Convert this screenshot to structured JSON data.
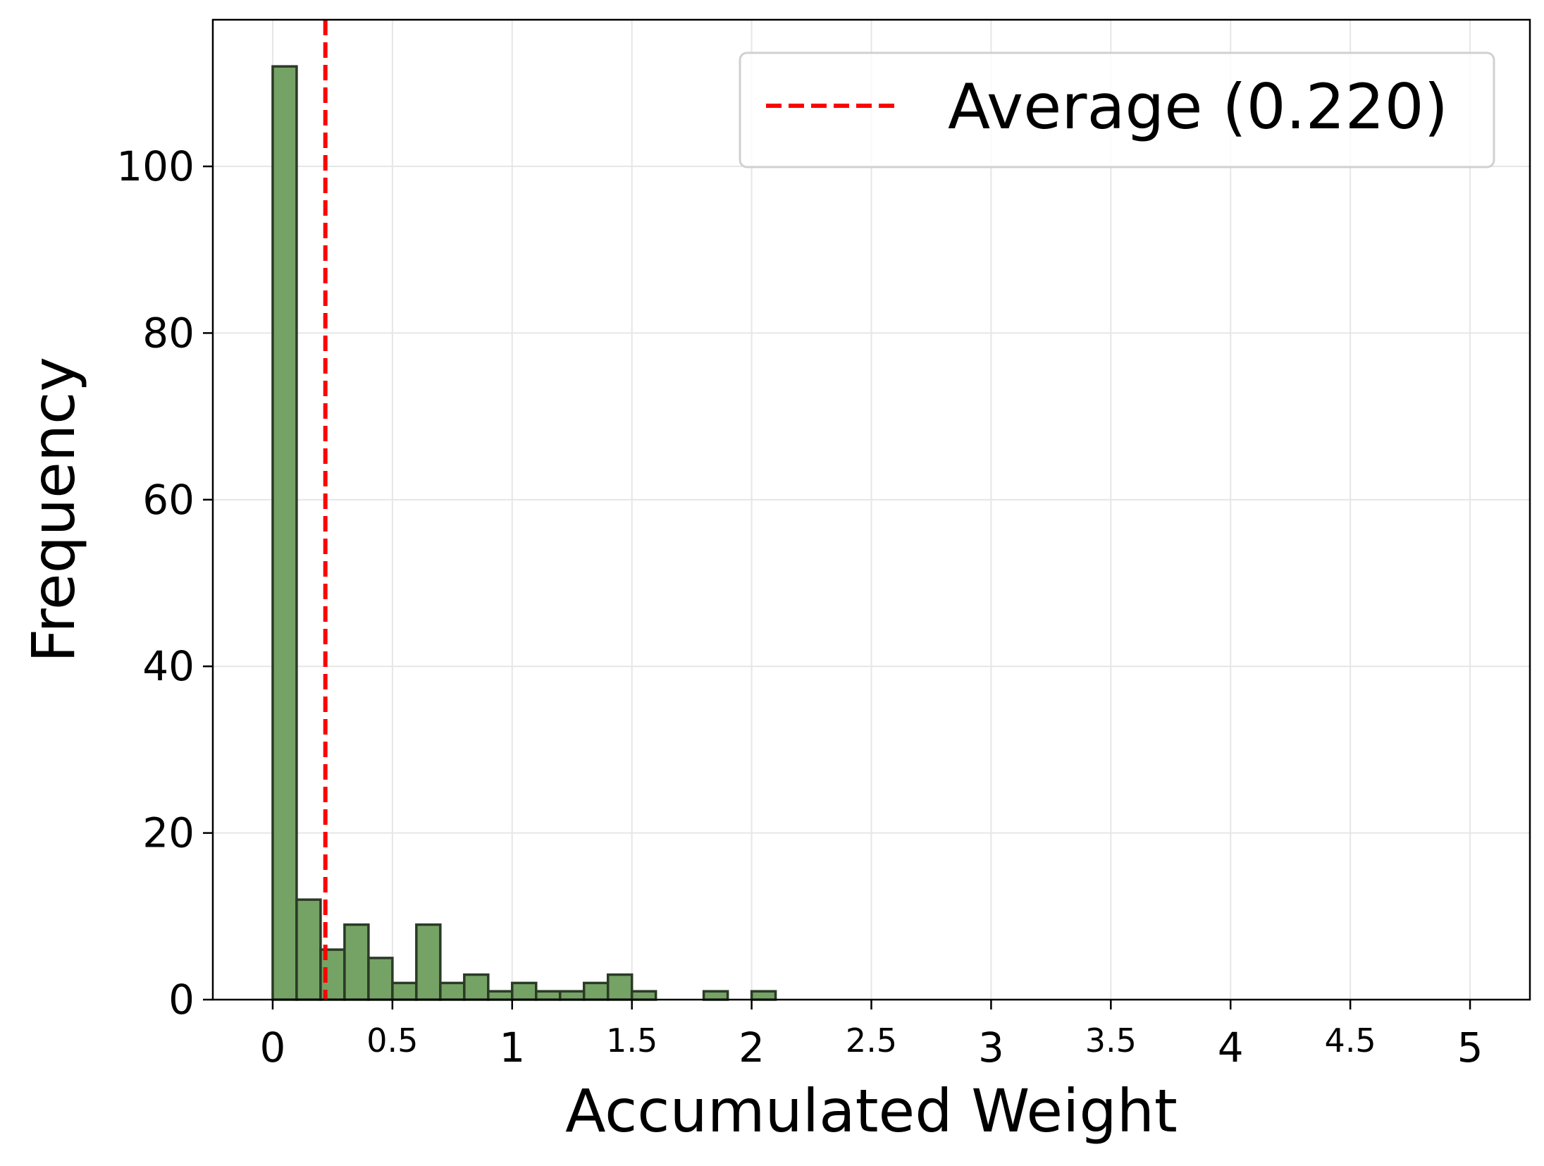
{
  "chart_data": {
    "type": "bar",
    "title": "",
    "xlabel": "Accumulated Weight",
    "ylabel": "Frequency",
    "xlim": [
      -0.25,
      5.25
    ],
    "ylim": [
      0,
      117.6
    ],
    "grid": true,
    "legend_position": "top-right",
    "bin_width": 0.1,
    "bins": [
      {
        "x0": 0.0,
        "x1": 0.1,
        "count": 112
      },
      {
        "x0": 0.1,
        "x1": 0.2,
        "count": 12
      },
      {
        "x0": 0.2,
        "x1": 0.3,
        "count": 6
      },
      {
        "x0": 0.3,
        "x1": 0.4,
        "count": 9
      },
      {
        "x0": 0.4,
        "x1": 0.5,
        "count": 5
      },
      {
        "x0": 0.5,
        "x1": 0.6,
        "count": 2
      },
      {
        "x0": 0.6,
        "x1": 0.7,
        "count": 9
      },
      {
        "x0": 0.7,
        "x1": 0.8,
        "count": 2
      },
      {
        "x0": 0.8,
        "x1": 0.9,
        "count": 3
      },
      {
        "x0": 0.9,
        "x1": 1.0,
        "count": 1
      },
      {
        "x0": 1.0,
        "x1": 1.1,
        "count": 2
      },
      {
        "x0": 1.1,
        "x1": 1.2,
        "count": 1
      },
      {
        "x0": 1.2,
        "x1": 1.3,
        "count": 1
      },
      {
        "x0": 1.3,
        "x1": 1.4,
        "count": 2
      },
      {
        "x0": 1.4,
        "x1": 1.5,
        "count": 3
      },
      {
        "x0": 1.5,
        "x1": 1.6,
        "count": 1
      },
      {
        "x0": 1.8,
        "x1": 1.9,
        "count": 1
      },
      {
        "x0": 2.0,
        "x1": 2.1,
        "count": 1
      }
    ],
    "xticks": [
      {
        "value": 0,
        "label": "0",
        "major": true
      },
      {
        "value": 0.5,
        "label": "0.5",
        "major": false
      },
      {
        "value": 1,
        "label": "1",
        "major": true
      },
      {
        "value": 1.5,
        "label": "1.5",
        "major": false
      },
      {
        "value": 2,
        "label": "2",
        "major": true
      },
      {
        "value": 2.5,
        "label": "2.5",
        "major": false
      },
      {
        "value": 3,
        "label": "3",
        "major": true
      },
      {
        "value": 3.5,
        "label": "3.5",
        "major": false
      },
      {
        "value": 4,
        "label": "4",
        "major": true
      },
      {
        "value": 4.5,
        "label": "4.5",
        "major": false
      },
      {
        "value": 5,
        "label": "5",
        "major": true
      }
    ],
    "yticks": [
      {
        "value": 0,
        "label": "0"
      },
      {
        "value": 20,
        "label": "20"
      },
      {
        "value": 40,
        "label": "40"
      },
      {
        "value": 60,
        "label": "60"
      },
      {
        "value": 80,
        "label": "80"
      },
      {
        "value": 100,
        "label": "100"
      }
    ],
    "average_line": {
      "value": 0.22,
      "label": "Average (0.220)",
      "color": "#ff0000"
    },
    "colors": {
      "bar_fill": "#75a365",
      "bar_edge": "#2b3a26",
      "grid": "#e6e6e6"
    }
  }
}
